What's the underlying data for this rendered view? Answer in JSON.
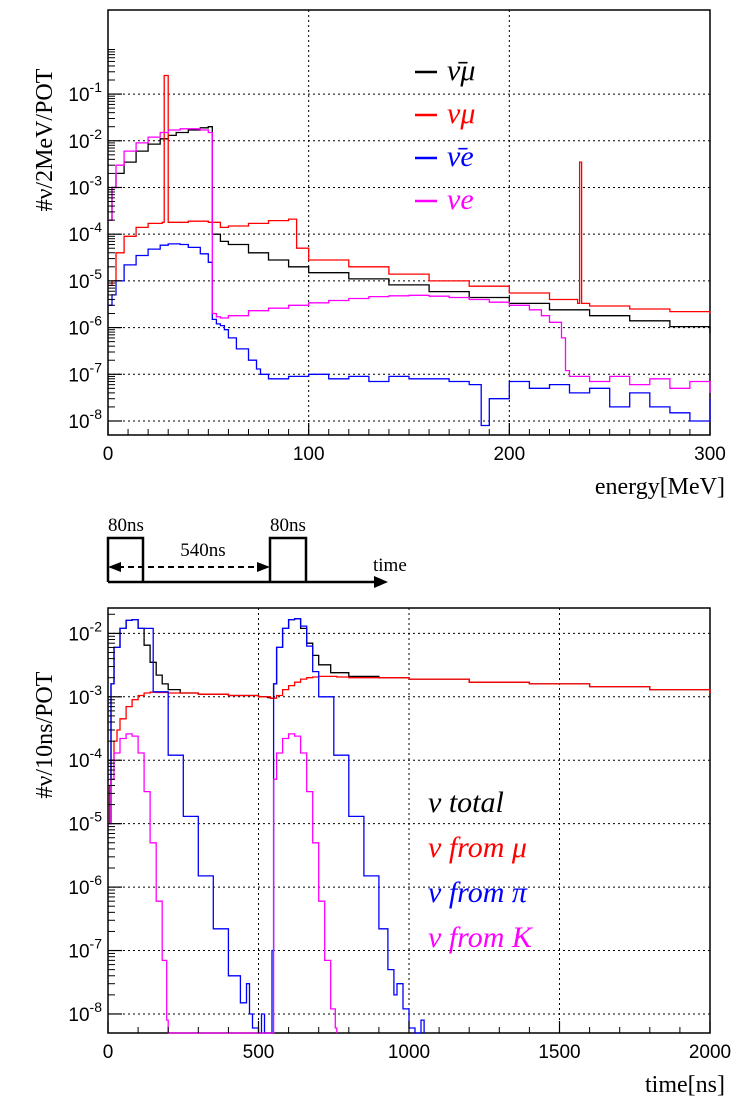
{
  "chart_data": [
    {
      "type": "line",
      "xlabel": "energy[MeV]",
      "ylabel": "#ν/2MeV/POT",
      "xlim": [
        0,
        300
      ],
      "ylim_log10": [
        -8.3,
        0.8
      ],
      "log_y": true,
      "grid": true,
      "legend_position": "top-right",
      "x_ticks": [
        "0",
        "100",
        "200",
        "300"
      ],
      "y_ticks": [
        "10-8",
        "10-7",
        "10-6",
        "10-5",
        "10-4",
        "10-3",
        "10-2",
        "10-1"
      ],
      "series": [
        {
          "name": "ν̄μ",
          "color": "#000000",
          "x": [
            0,
            2,
            4,
            8,
            14,
            20,
            26,
            30,
            34,
            40,
            46,
            50,
            52,
            56,
            60,
            70,
            80,
            90,
            100,
            120,
            140,
            160,
            180,
            200,
            220,
            240,
            260,
            280,
            300
          ],
          "y": [
            0.0002,
            0.001,
            0.002,
            0.0035,
            0.006,
            0.0085,
            0.011,
            0.013,
            0.015,
            0.017,
            0.019,
            0.02,
            0.0001,
            7e-05,
            6e-05,
            4e-05,
            2.8e-05,
            2e-05,
            1.5e-05,
            1.1e-05,
            8.2e-06,
            5.9e-06,
            4.4e-06,
            3.3e-06,
            2.4e-06,
            1.8e-06,
            1.4e-06,
            1.05e-06,
            7.5e-07
          ]
        },
        {
          "name": "νμ",
          "color": "#ff0000",
          "x": [
            0,
            2,
            4,
            8,
            14,
            20,
            27,
            28,
            29,
            30,
            40,
            50,
            56,
            60,
            70,
            80,
            90,
            94,
            100,
            120,
            140,
            160,
            180,
            200,
            220,
            234,
            235,
            236,
            240,
            260,
            280,
            300
          ],
          "y": [
            8e-06,
            1e-05,
            4e-05,
            9e-05,
            0.00014,
            0.00017,
            0.00018,
            0.25,
            0.25,
            0.00018,
            0.00019,
            0.00018,
            0.00014,
            0.00015,
            0.00017,
            0.000195,
            0.00021,
            5e-05,
            2.8e-05,
            2e-05,
            1.4e-05,
            1e-05,
            7.7e-06,
            5.5e-06,
            4e-06,
            3.3e-06,
            0.0035,
            3.3e-06,
            2.9e-06,
            2.5e-06,
            2.2e-06,
            2e-06
          ]
        },
        {
          "name": "ν̄e",
          "color": "#0000ff",
          "x": [
            0,
            2,
            4,
            8,
            14,
            20,
            26,
            30,
            36,
            40,
            46,
            50,
            52,
            54,
            56,
            58,
            60,
            64,
            70,
            74,
            76,
            80,
            90,
            100,
            110,
            120,
            130,
            140,
            150,
            160,
            170,
            180,
            186,
            190,
            200,
            210,
            220,
            230,
            240,
            250,
            260,
            270,
            280,
            290,
            300
          ],
          "y": [
            3e-06,
            5e-06,
            1e-05,
            2.2e-05,
            3.5e-05,
            4.8e-05,
            5.8e-05,
            6.2e-05,
            6e-05,
            5.2e-05,
            3.8e-05,
            2.5e-05,
            1.5e-06,
            1.2e-06,
            1.1e-06,
            9e-07,
            6e-07,
            3.5e-07,
            2e-07,
            1.3e-07,
            1e-07,
            8e-08,
            9e-08,
            1e-07,
            8e-08,
            9e-08,
            7e-08,
            9e-08,
            8e-08,
            8e-08,
            7e-08,
            6e-08,
            8e-09,
            3e-08,
            7e-08,
            5e-08,
            6e-08,
            4e-08,
            5e-08,
            2e-08,
            4e-08,
            2e-08,
            1.5e-08,
            1e-08,
            3e-08
          ]
        },
        {
          "name": "νe",
          "color": "#ff00ff",
          "x": [
            0,
            2,
            4,
            8,
            14,
            20,
            26,
            30,
            36,
            40,
            46,
            50,
            52,
            54,
            56,
            60,
            70,
            80,
            90,
            100,
            110,
            120,
            130,
            140,
            150,
            160,
            170,
            180,
            190,
            200,
            210,
            216,
            220,
            226,
            228,
            230,
            240,
            250,
            260,
            270,
            280,
            290,
            300
          ],
          "y": [
            0.0002,
            0.001,
            0.003,
            0.006,
            0.009,
            0.012,
            0.015,
            0.017,
            0.018,
            0.018,
            0.017,
            0.015,
            2e-06,
            1.7e-06,
            1.6e-06,
            1.8e-06,
            2.3e-06,
            2.6e-06,
            3e-06,
            3.4e-06,
            3.8e-06,
            4.2e-06,
            4.6e-06,
            4.8e-06,
            4.9e-06,
            4.7e-06,
            4.4e-06,
            4e-06,
            3.5e-06,
            3e-06,
            2.4e-06,
            1.8e-06,
            1.3e-06,
            6e-07,
            1.2e-07,
            9e-08,
            7e-08,
            9e-08,
            6e-08,
            8e-08,
            5e-08,
            7e-08,
            4e-08
          ]
        }
      ]
    },
    {
      "type": "line",
      "xlabel": "time[ns]",
      "ylabel": "#ν/10ns/POT",
      "xlim": [
        0,
        2000
      ],
      "ylim_log10": [
        -8.3,
        -1.6
      ],
      "log_y": true,
      "grid": true,
      "legend_position": "right",
      "x_ticks": [
        "0",
        "500",
        "1000",
        "1500",
        "2000"
      ],
      "y_ticks": [
        "10-8",
        "10-7",
        "10-6",
        "10-5",
        "10-4",
        "10-3",
        "10-2"
      ],
      "series": [
        {
          "name": "ν total",
          "color": "#000000",
          "x": [
            0,
            10,
            20,
            40,
            60,
            80,
            100,
            120,
            140,
            160,
            180,
            200,
            240,
            300,
            400,
            500,
            530,
            540,
            550,
            560,
            580,
            600,
            620,
            640,
            660,
            680,
            700,
            740,
            800,
            900,
            1000,
            1200,
            1400,
            1600,
            1800,
            2000
          ],
          "y": [
            1e-05,
            0.0016,
            0.006,
            0.012,
            0.016,
            0.0165,
            0.012,
            0.0065,
            0.0035,
            0.0022,
            0.0016,
            0.0013,
            0.00115,
            0.0011,
            0.00105,
            0.001,
            0.00097,
            0.00095,
            0.0016,
            0.006,
            0.012,
            0.0165,
            0.017,
            0.012,
            0.007,
            0.0045,
            0.0032,
            0.0024,
            0.0021,
            0.002,
            0.0019,
            0.0017,
            0.0016,
            0.00145,
            0.0013,
            0.00115
          ]
        },
        {
          "name": "ν from μ",
          "color": "#ff0000",
          "x": [
            0,
            5,
            10,
            20,
            30,
            40,
            60,
            80,
            100,
            120,
            140,
            160,
            200,
            300,
            400,
            500,
            540,
            560,
            580,
            600,
            620,
            640,
            660,
            680,
            700,
            760,
            800,
            1000,
            1200,
            1400,
            1600,
            1800,
            2000
          ],
          "y": [
            1e-05,
            4e-05,
            0.0001,
            0.0002,
            0.0003,
            0.00045,
            0.0007,
            0.0009,
            0.00105,
            0.00115,
            0.00118,
            0.00117,
            0.00115,
            0.0011,
            0.00105,
            0.001,
            0.00095,
            0.00105,
            0.0013,
            0.0015,
            0.0017,
            0.0019,
            0.002,
            0.00205,
            0.0021,
            0.00205,
            0.002,
            0.0019,
            0.0017,
            0.0016,
            0.00145,
            0.0013,
            0.00115
          ]
        },
        {
          "name": "ν from π",
          "color": "#0000ff",
          "x": [
            0,
            10,
            20,
            40,
            60,
            80,
            100,
            150,
            200,
            250,
            300,
            350,
            400,
            440,
            460,
            470,
            480,
            500,
            510,
            520,
            540,
            545,
            550,
            560,
            580,
            600,
            620,
            640,
            660,
            680,
            700,
            750,
            800,
            850,
            900,
            930,
            950,
            960,
            980,
            1000,
            1020,
            1040,
            1050
          ],
          "y": [
            1e-05,
            0.0016,
            0.006,
            0.012,
            0.016,
            0.0165,
            0.012,
            0.0012,
            0.00012,
            1.3e-05,
            1.5e-06,
            2.2e-07,
            4e-08,
            1.5e-08,
            3e-08,
            1e-08,
            6e-09,
            4e-09,
            1e-08,
            4e-09,
            4e-09,
            1e-07,
            0.0016,
            0.006,
            0.012,
            0.0165,
            0.017,
            0.013,
            0.0063,
            0.0025,
            0.001,
            0.00012,
            1.3e-05,
            1.5e-06,
            2.2e-07,
            5e-08,
            2e-08,
            3e-08,
            1.2e-08,
            6e-09,
            4e-09,
            8e-09,
            4e-09
          ]
        },
        {
          "name": "ν from K",
          "color": "#ff00ff",
          "x": [
            0,
            10,
            20,
            40,
            60,
            80,
            100,
            120,
            140,
            160,
            180,
            195,
            200,
            540,
            550,
            560,
            580,
            600,
            620,
            640,
            660,
            680,
            700,
            720,
            740,
            755,
            760
          ],
          "y": [
            1e-05,
            5e-05,
            0.00013,
            0.00022,
            0.00026,
            0.00024,
            0.00013,
            3.2e-05,
            5e-06,
            6e-07,
            7e-08,
            8e-09,
            4e-09,
            4e-09,
            5e-05,
            0.00013,
            0.00022,
            0.00026,
            0.00024,
            0.00013,
            3.2e-05,
            5e-06,
            6e-07,
            7e-08,
            1.2e-08,
            6e-09,
            4e-09
          ]
        }
      ]
    }
  ],
  "timing_diagram": {
    "pulse1_label": "80ns",
    "gap_label": "540ns",
    "pulse2_label": "80ns",
    "axis_label": "time"
  }
}
